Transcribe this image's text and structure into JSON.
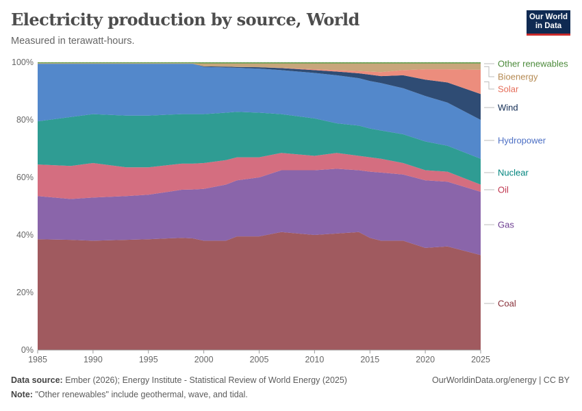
{
  "header": {
    "title": "Electricity production by source, World",
    "subtitle": "Measured in terawatt-hours.",
    "logo": "Our World in Data"
  },
  "footer": {
    "source_label": "Data source:",
    "source": "Ember (2026); Energy Institute - Statistical Review of World Energy (2025)",
    "note_label": "Note:",
    "note": "\"Other renewables\" include geothermal, wave, and tidal.",
    "link": "OurWorldinData.org/energy | CC BY"
  },
  "chart_data": {
    "type": "area",
    "stacked": "relative",
    "title": "Electricity production by source, World",
    "ylabel": "",
    "xlabel": "",
    "ylim": [
      0,
      100
    ],
    "xlim": [
      1985,
      2025
    ],
    "yticks": [
      "0%",
      "20%",
      "40%",
      "60%",
      "80%",
      "100%"
    ],
    "xticks": [
      "1985",
      "1990",
      "1995",
      "2000",
      "2005",
      "2010",
      "2015",
      "2020",
      "2025"
    ],
    "x": [
      1985,
      1988,
      1990,
      1993,
      1995,
      1998,
      1999,
      2000,
      2002,
      2003,
      2005,
      2007,
      2010,
      2012,
      2014,
      2015,
      2016,
      2018,
      2020,
      2022,
      2025
    ],
    "series": [
      {
        "name": "Coal",
        "color": "#a05a5f",
        "label_color": "#883039",
        "values": [
          38.5,
          38.3,
          38,
          38.3,
          38.5,
          39,
          38.8,
          38,
          38,
          39.5,
          39.5,
          41,
          40,
          40.5,
          41,
          39,
          38,
          38,
          35.5,
          36,
          33
        ]
      },
      {
        "name": "Gas",
        "color": "#8a65aa",
        "label_color": "#6d3e91",
        "values": [
          15,
          14.2,
          15,
          15.2,
          15.5,
          16.7,
          17,
          18,
          19.5,
          19.5,
          20.5,
          21.5,
          22.5,
          22.5,
          21.5,
          23,
          23.7,
          23,
          23.5,
          22.5,
          22
        ]
      },
      {
        "name": "Oil",
        "color": "#d46e80",
        "label_color": "#c0364f",
        "values": [
          11,
          11.5,
          12,
          10,
          9.5,
          9.1,
          9,
          9,
          8.5,
          8,
          7,
          6,
          5,
          5.5,
          5,
          5,
          4.8,
          4,
          3.5,
          3.5,
          2.5
        ]
      },
      {
        "name": "Nuclear",
        "color": "#2f9c93",
        "label_color": "#00847e",
        "values": [
          15,
          17,
          17,
          18,
          18,
          17.2,
          17.2,
          17,
          16.5,
          15.8,
          15.5,
          13.5,
          13,
          10.3,
          10.5,
          10,
          9.8,
          10,
          10,
          9,
          9
        ]
      },
      {
        "name": "Hydropower",
        "color": "#5388cb",
        "label_color": "#4c6fc4",
        "values": [
          20,
          18.5,
          17.5,
          18,
          18,
          17.5,
          17.5,
          16.4,
          15.7,
          15.3,
          15.3,
          15.3,
          15.8,
          16.7,
          16.5,
          16.5,
          16.5,
          16,
          15.8,
          15,
          13.5
        ]
      },
      {
        "name": "Wind",
        "color": "#2f4c74",
        "label_color": "#0f2a52",
        "values": [
          0,
          0,
          0,
          0,
          0,
          0,
          0,
          0.2,
          0.3,
          0.3,
          0.5,
          0.7,
          1,
          1.3,
          1.7,
          2.2,
          2.4,
          4.5,
          5.7,
          7,
          9
        ]
      },
      {
        "name": "Solar",
        "color": "#ec8d7d",
        "label_color": "#e56e5a",
        "values": [
          0,
          0,
          0,
          0,
          0,
          0,
          0,
          0,
          0,
          0,
          0,
          0.1,
          0.3,
          0.5,
          0.8,
          1.1,
          1.4,
          1.8,
          3.6,
          4.6,
          8.4
        ]
      },
      {
        "name": "Bioenergy",
        "color": "#c8a67b",
        "label_color": "#b58a53",
        "values": [
          0.2,
          0.2,
          0.2,
          0.2,
          0.2,
          0.2,
          0.2,
          1,
          1.1,
          1.2,
          1.3,
          1.5,
          2,
          2.3,
          2.6,
          2.8,
          3,
          2.3,
          2,
          2,
          2.2
        ]
      },
      {
        "name": "Other renewables",
        "color": "#5f9a46",
        "label_color": "#4b8a3a",
        "values": [
          0.3,
          0.3,
          0.3,
          0.3,
          0.3,
          0.3,
          0.3,
          0.4,
          0.4,
          0.4,
          0.4,
          0.4,
          0.4,
          0.4,
          0.4,
          0.4,
          0.4,
          0.4,
          0.4,
          0.4,
          0.4
        ]
      }
    ]
  }
}
